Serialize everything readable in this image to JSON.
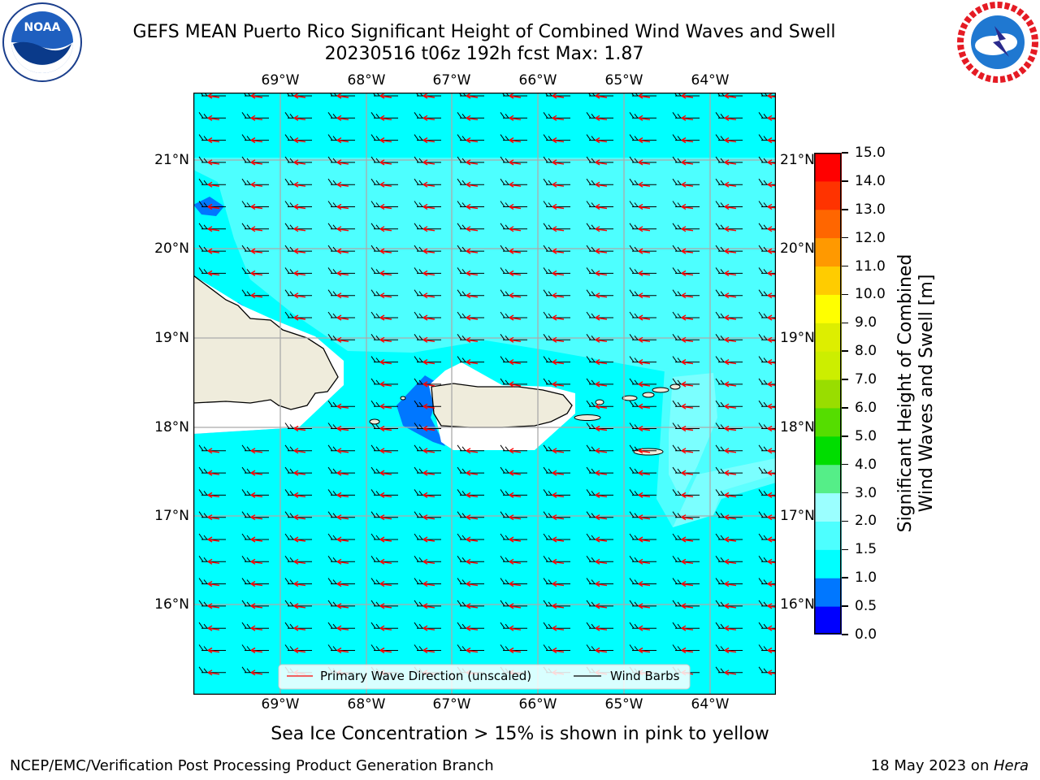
{
  "header": {
    "title_line1": "GEFS MEAN Puerto Rico Significant Height of Combined Wind Waves and Swell",
    "title_line2": "20230516 t06z 192h fcst   Max: 1.87"
  },
  "logos": {
    "left": {
      "name": "NOAA",
      "text": "NOAA",
      "ring_text": "NATIONAL OCEANIC AND ATMOSPHERIC ADMINISTRATION · U.S. DEPARTMENT OF COMMERCE"
    },
    "right": {
      "name": "National Weather Service",
      "ring_text": "NATIONAL WEATHER SERVICE"
    }
  },
  "map": {
    "lon_labels": [
      "69°W",
      "68°W",
      "67°W",
      "66°W",
      "65°W",
      "64°W"
    ],
    "lat_labels": [
      "21°N",
      "20°N",
      "19°N",
      "18°N",
      "17°N",
      "16°N"
    ],
    "legend": {
      "primary_wave": "Primary Wave Direction (unscaled)",
      "wind_barbs": "Wind Barbs"
    },
    "colors": {
      "ocean": "#00ffff",
      "land": "#efecdc",
      "wave_arrow": "#ff0000",
      "barb": "#000000",
      "low_wave": "#0077ff",
      "mid_wave": "#4dffff"
    }
  },
  "colorbar": {
    "label_line1": "Significant Height of Combined",
    "label_line2": "Wind Waves and Swell [m]",
    "ticks": [
      "0.0",
      "0.5",
      "1.0",
      "1.5",
      "2.0",
      "3.0",
      "4.0",
      "5.0",
      "6.0",
      "7.0",
      "8.0",
      "9.0",
      "10.0",
      "11.0",
      "12.0",
      "13.0",
      "14.0",
      "15.0"
    ],
    "colors": [
      "#0000ff",
      "#0077ff",
      "#00ffff",
      "#4dffff",
      "#9bffff",
      "#55ee88",
      "#00dd00",
      "#55dd00",
      "#99dd00",
      "#ccee00",
      "#ddee00",
      "#ffff00",
      "#ffcc00",
      "#ff9900",
      "#ff6600",
      "#ff3300",
      "#ff0000"
    ]
  },
  "note": "Sea Ice Concentration > 15% is shown in pink to yellow",
  "footer": {
    "left": "NCEP/EMC/Verification Post Processing Product Generation Branch",
    "right_prefix": "18 May 2023 on ",
    "right_host": "Hera"
  }
}
